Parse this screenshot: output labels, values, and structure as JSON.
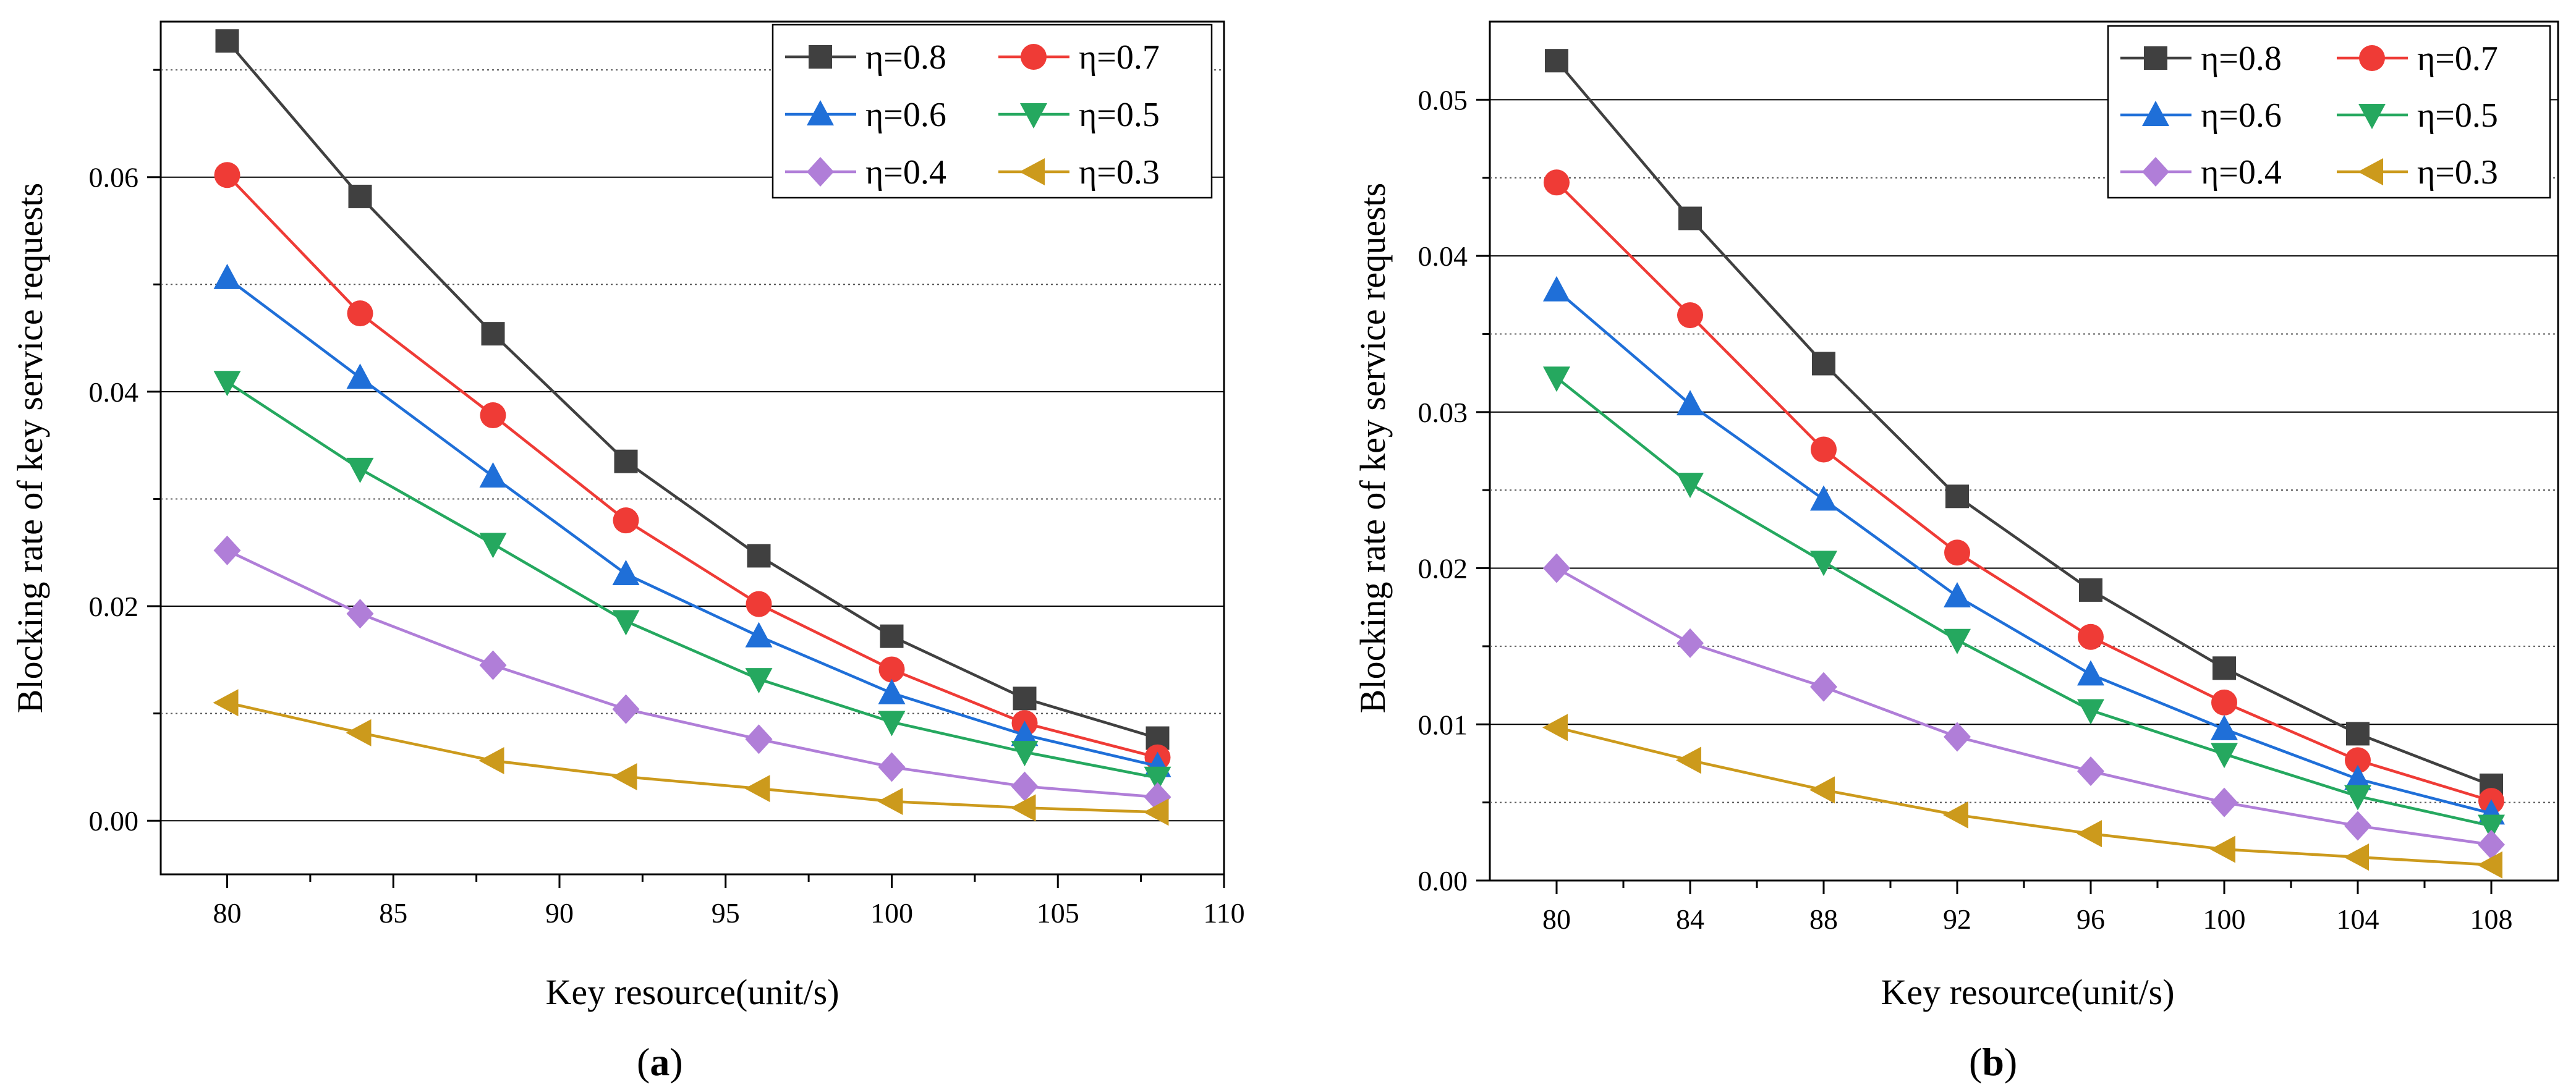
{
  "chart_data": [
    {
      "type": "line",
      "panel_label": "a",
      "xlabel": "Key resource(unit/s)",
      "ylabel": "Blocking rate of key service requests",
      "xlim": [
        78,
        110
      ],
      "ylim": [
        -0.005,
        0.0745
      ],
      "xticks": [
        80,
        85,
        90,
        95,
        100,
        105,
        110
      ],
      "xtick_labels": [
        "80",
        "85",
        "90",
        "95",
        "100",
        "105",
        "110"
      ],
      "yticks": [
        0.0,
        0.02,
        0.04,
        0.06
      ],
      "ytick_labels": [
        "0.00",
        "0.02",
        "0.04",
        "0.06"
      ],
      "grid_major": [
        0.0,
        0.02,
        0.04,
        0.06
      ],
      "grid_minor": [
        0.01,
        0.03,
        0.05,
        0.07
      ],
      "legend_position": "top-right",
      "x": [
        80,
        84,
        88,
        92,
        96,
        100,
        104,
        108
      ],
      "series": [
        {
          "name": "η=0.8",
          "color": "#404040",
          "marker": "square",
          "values": [
            0.0727,
            0.0582,
            0.0454,
            0.0335,
            0.0247,
            0.0172,
            0.0114,
            0.0077
          ]
        },
        {
          "name": "η=0.7",
          "color": "#ef3b36",
          "marker": "circle",
          "values": [
            0.0602,
            0.0473,
            0.0378,
            0.028,
            0.0202,
            0.0141,
            0.0091,
            0.0059
          ]
        },
        {
          "name": "η=0.6",
          "color": "#1f6fd8",
          "marker": "triangle-up",
          "values": [
            0.0506,
            0.0413,
            0.0321,
            0.023,
            0.0172,
            0.0119,
            0.008,
            0.0051
          ]
        },
        {
          "name": "η=0.5",
          "color": "#25a85f",
          "marker": "triangle-down",
          "values": [
            0.0409,
            0.0328,
            0.0258,
            0.0186,
            0.0132,
            0.0092,
            0.0064,
            0.004
          ]
        },
        {
          "name": "η=0.4",
          "color": "#b07ed8",
          "marker": "diamond",
          "values": [
            0.0252,
            0.0193,
            0.0145,
            0.0104,
            0.0076,
            0.005,
            0.0032,
            0.0022
          ]
        },
        {
          "name": "η=0.3",
          "color": "#cc9a1c",
          "marker": "triangle-left",
          "values": [
            0.011,
            0.0082,
            0.0056,
            0.0041,
            0.003,
            0.0018,
            0.0012,
            0.0008
          ]
        }
      ]
    },
    {
      "type": "line",
      "panel_label": "b",
      "xlabel": "Key resource(unit/s)",
      "ylabel": "Blocking rate of key service requests",
      "xlim": [
        78,
        110
      ],
      "ylim": [
        0.0,
        0.055
      ],
      "xticks": [
        80,
        84,
        88,
        92,
        96,
        100,
        104,
        108
      ],
      "xtick_labels": [
        "80",
        "84",
        "88",
        "92",
        "96",
        "100",
        "104",
        "108"
      ],
      "yticks": [
        0.0,
        0.01,
        0.02,
        0.03,
        0.04,
        0.05
      ],
      "ytick_labels": [
        "0.00",
        "0.01",
        "0.02",
        "0.03",
        "0.04",
        "0.05"
      ],
      "grid_major": [
        0.01,
        0.02,
        0.03,
        0.04,
        0.05
      ],
      "grid_minor": [
        0.005,
        0.015,
        0.025,
        0.035,
        0.045
      ],
      "legend_position": "top-right",
      "x": [
        80,
        84,
        88,
        92,
        96,
        100,
        104,
        108
      ],
      "series": [
        {
          "name": "η=0.8",
          "color": "#404040",
          "marker": "square",
          "values": [
            0.0525,
            0.0424,
            0.0331,
            0.0246,
            0.0186,
            0.0136,
            0.0094,
            0.0061
          ]
        },
        {
          "name": "η=0.7",
          "color": "#ef3b36",
          "marker": "circle",
          "values": [
            0.0447,
            0.0362,
            0.0276,
            0.021,
            0.0156,
            0.0114,
            0.0077,
            0.0051
          ]
        },
        {
          "name": "η=0.6",
          "color": "#1f6fd8",
          "marker": "triangle-up",
          "values": [
            0.0378,
            0.0305,
            0.0244,
            0.0182,
            0.0132,
            0.0097,
            0.0065,
            0.0043
          ]
        },
        {
          "name": "η=0.5",
          "color": "#25a85f",
          "marker": "triangle-down",
          "values": [
            0.0322,
            0.0254,
            0.0204,
            0.0154,
            0.0109,
            0.0081,
            0.0054,
            0.0035
          ]
        },
        {
          "name": "η=0.4",
          "color": "#b07ed8",
          "marker": "diamond",
          "values": [
            0.02,
            0.0152,
            0.0124,
            0.0092,
            0.007,
            0.005,
            0.0035,
            0.0023
          ]
        },
        {
          "name": "η=0.3",
          "color": "#cc9a1c",
          "marker": "triangle-left",
          "values": [
            0.0098,
            0.0077,
            0.0058,
            0.0042,
            0.003,
            0.002,
            0.0015,
            0.001
          ]
        }
      ]
    }
  ]
}
